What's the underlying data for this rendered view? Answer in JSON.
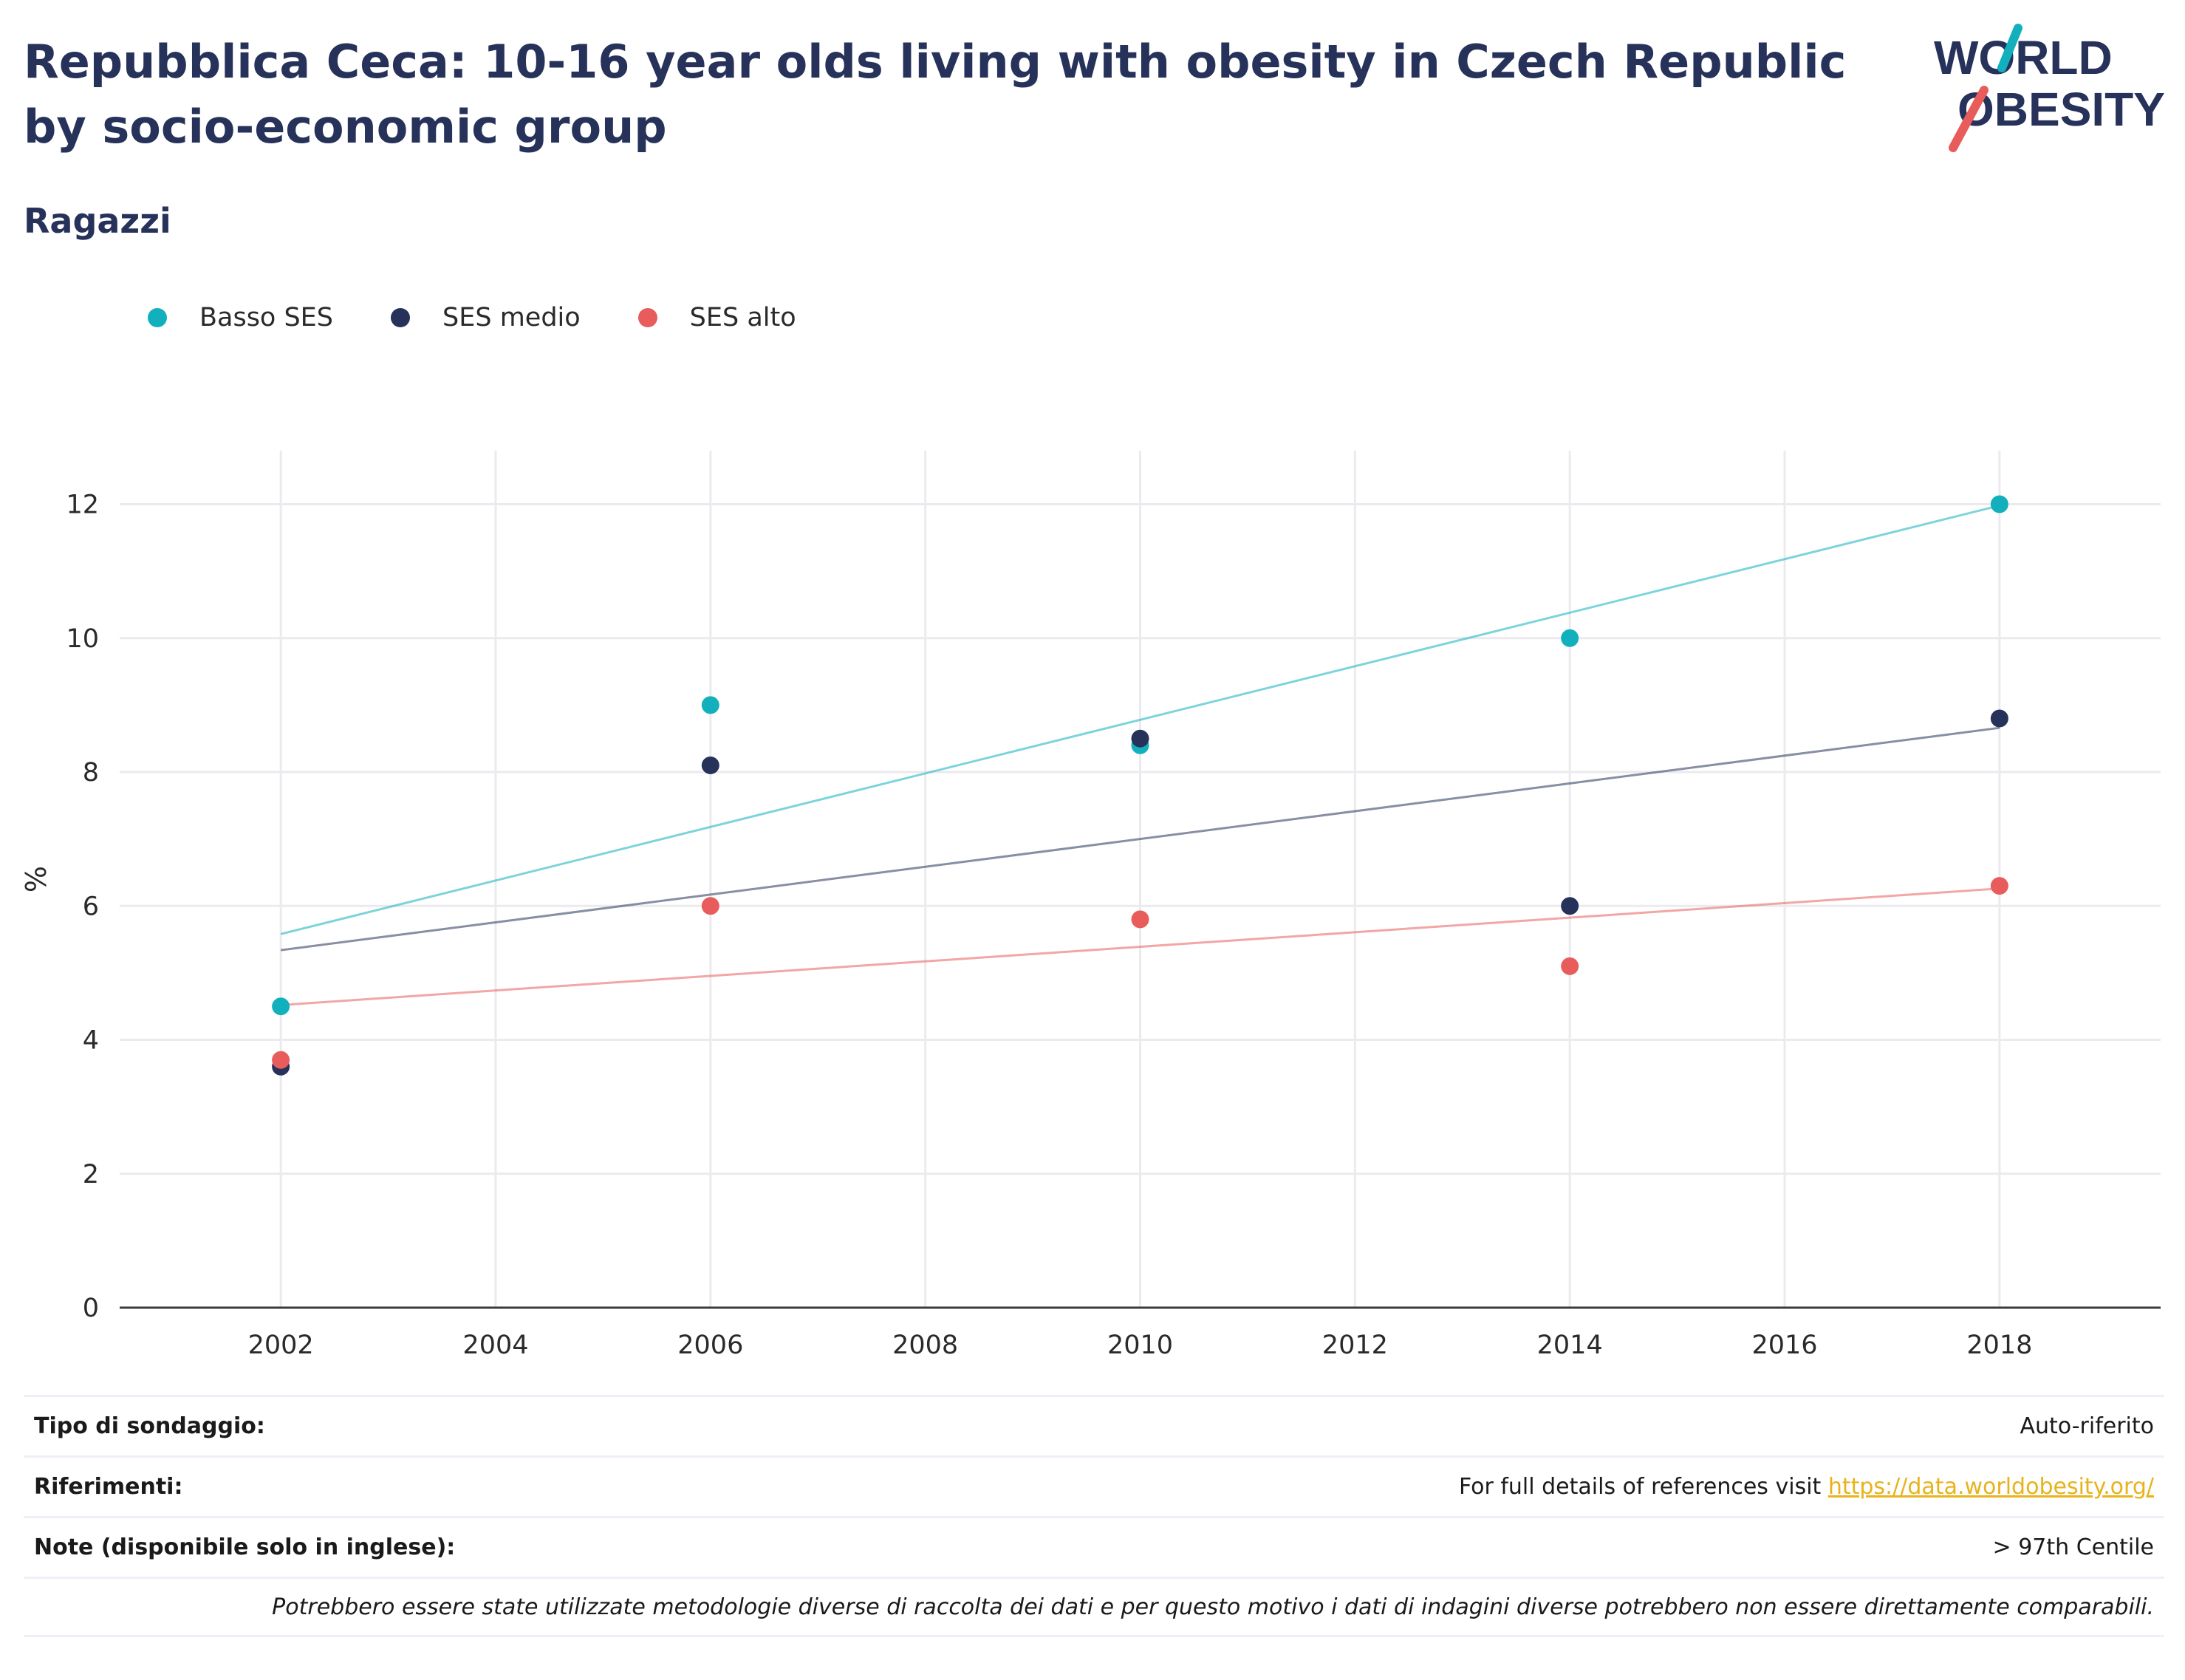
{
  "header": {
    "title": "Repubblica Ceca: 10-16 year olds living with obesity in Czech Republic by socio-economic group",
    "subtitle": "Ragazzi"
  },
  "logo": {
    "line1": "WORLD",
    "line2": "OBESITY"
  },
  "colors": {
    "basso": "#12b0bd",
    "medio": "#27325a",
    "alto": "#e85c5c",
    "text": "#27325a"
  },
  "chart_data": {
    "type": "scatter",
    "ylabel": "%",
    "xlabel": "",
    "xlim": [
      2000.5,
      2019.5
    ],
    "ylim": [
      0,
      12.8
    ],
    "xticks": [
      2002,
      2004,
      2006,
      2008,
      2010,
      2012,
      2014,
      2016,
      2018
    ],
    "yticks": [
      0,
      2,
      4,
      6,
      8,
      10,
      12
    ],
    "grid": true,
    "legend_position": "top-left",
    "x": [
      2002,
      2006,
      2010,
      2014,
      2018
    ],
    "series": [
      {
        "name": "Basso SES",
        "color": "#12b0bd",
        "values": [
          4.5,
          9.0,
          8.4,
          10.0,
          12.0
        ],
        "trend": [
          [
            2002,
            5.58
          ],
          [
            2018,
            11.98
          ]
        ]
      },
      {
        "name": "SES medio",
        "color": "#27325a",
        "values": [
          3.6,
          8.1,
          8.5,
          6.0,
          8.8
        ],
        "trend": [
          [
            2002,
            5.34
          ],
          [
            2018,
            8.66
          ]
        ]
      },
      {
        "name": "SES alto",
        "color": "#e85c5c",
        "values": [
          3.7,
          6.0,
          5.8,
          5.1,
          6.3
        ],
        "trend": [
          [
            2002,
            4.52
          ],
          [
            2018,
            6.26
          ]
        ]
      }
    ]
  },
  "footer": {
    "survey_label": "Tipo di sondaggio:",
    "survey_value": "Auto-riferito",
    "refs_label": "Riferimenti:",
    "refs_text": "For full details of references visit",
    "refs_link": "https://data.worldobesity.org/",
    "notes_label": "Note (disponibile solo in inglese):",
    "notes_value": "> 97th Centile",
    "disclaimer": "Potrebbero essere state utilizzate metodologie diverse di raccolta dei dati e per questo motivo i dati di indagini diverse potrebbero non essere direttamente comparabili."
  }
}
